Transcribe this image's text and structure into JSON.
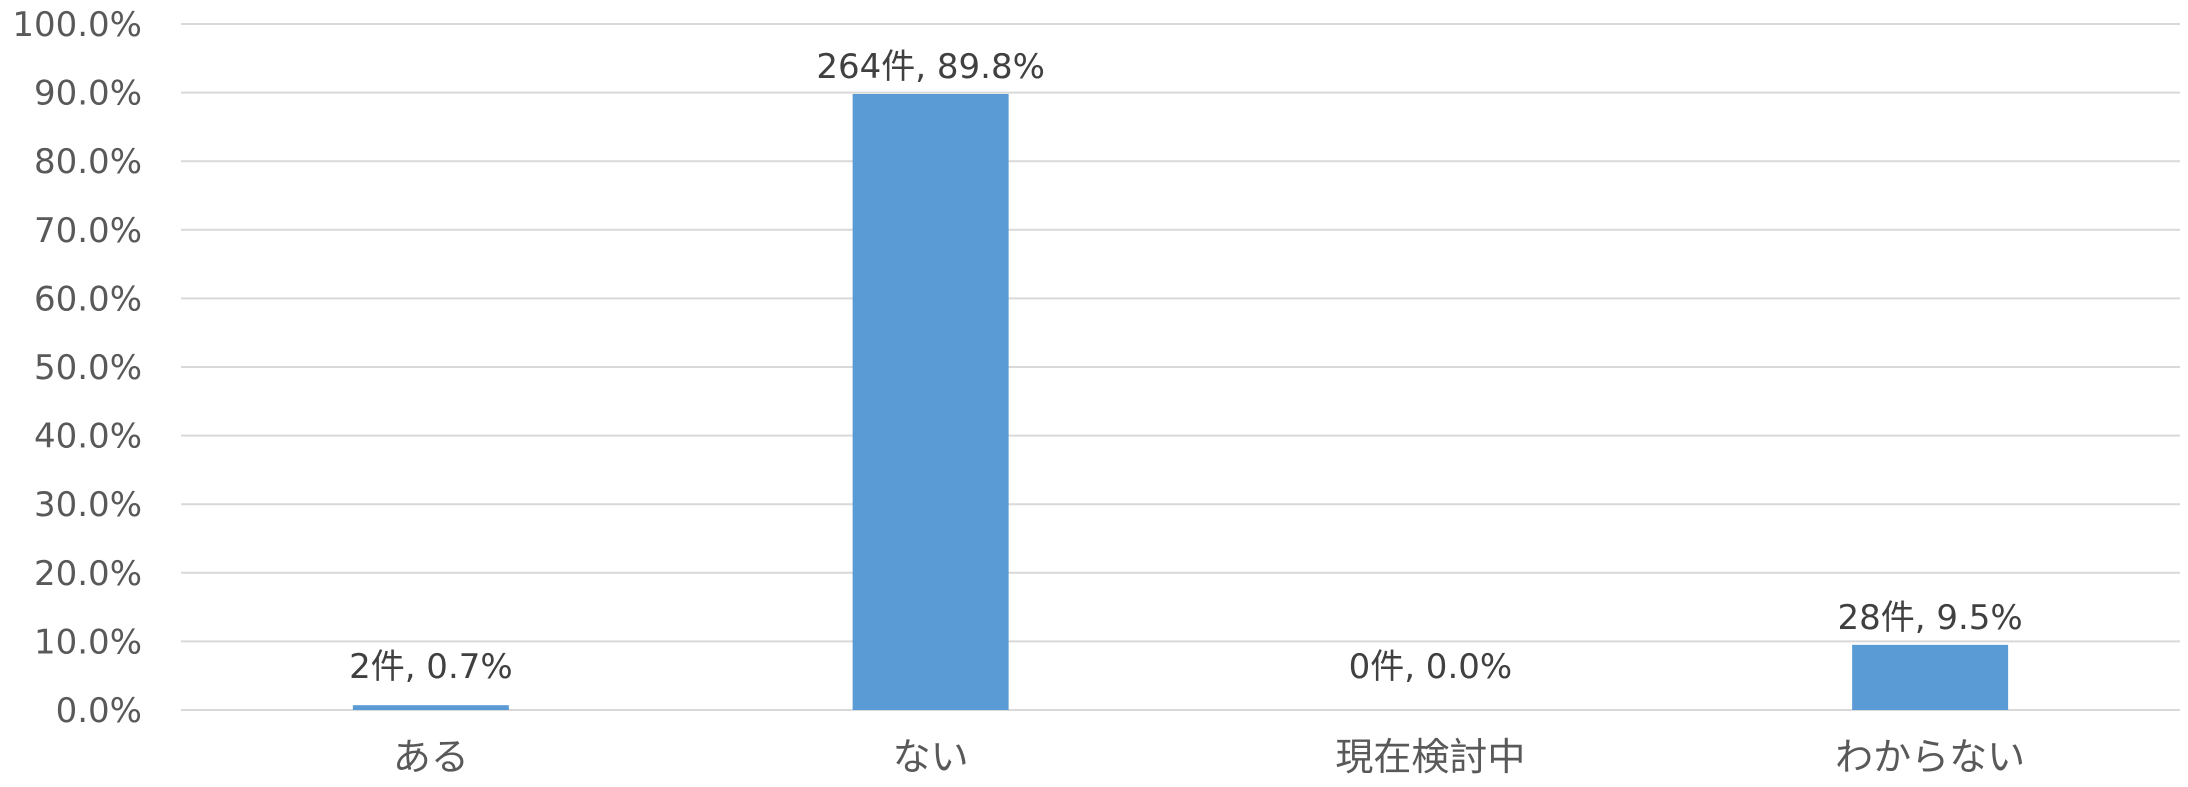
{
  "chart_data": {
    "type": "bar",
    "categories": [
      "ある",
      "ない",
      "現在検討中",
      "わからない"
    ],
    "values": [
      0.7,
      89.8,
      0.0,
      9.5
    ],
    "data_labels": [
      "2件, 0.7%",
      "264件, 89.8%",
      "0件, 0.0%",
      "28件, 9.5%"
    ],
    "y_ticks": [
      "0.0%",
      "10.0%",
      "20.0%",
      "30.0%",
      "40.0%",
      "50.0%",
      "60.0%",
      "70.0%",
      "80.0%",
      "90.0%",
      "100.0%"
    ],
    "ylim": [
      0,
      100
    ],
    "grid": true,
    "legend": "none",
    "colors": {
      "bar": "#5B9BD5",
      "grid": "#D9D9D9"
    }
  }
}
